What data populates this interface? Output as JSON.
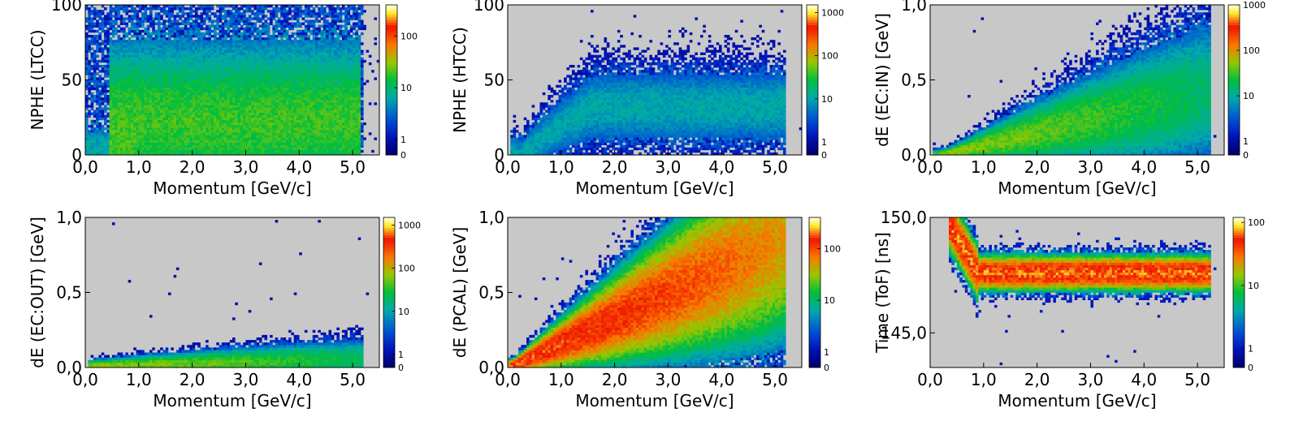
{
  "chart_data": [
    {
      "type": "heatmap",
      "title": "",
      "xlabel": "Momentum [GeV/c]",
      "ylabel": "NPHE (LTCC)",
      "xlim": [
        0,
        5.5
      ],
      "ylim": [
        0,
        100
      ],
      "x_ticks": [
        0,
        1,
        2,
        3,
        4,
        5
      ],
      "x_tick_labels": [
        "0,0",
        "1,0",
        "2,0",
        "3,0",
        "4,0",
        "5,0"
      ],
      "y_ticks": [
        0,
        50,
        100
      ],
      "y_tick_labels": [
        "0",
        "50",
        "100"
      ],
      "colorbar": {
        "scale": "log",
        "ticks": [
          0,
          1,
          10,
          100
        ],
        "tick_labels": [
          "0",
          "1",
          "10",
          "100"
        ],
        "max": 400
      },
      "density_description": "broad band from p=0.2 to 4.9 GeV/c; high density (10-100) for NPHE 0-45 between p 0.7-4.9; sparse counts up to 100",
      "bands": [
        {
          "x_range": [
            0.15,
            4.95
          ],
          "y_center": 45,
          "y_width": 60,
          "peak": 3
        },
        {
          "x_range": [
            0.7,
            4.9
          ],
          "y_center": 22,
          "y_width": 26,
          "peak": 30
        },
        {
          "x_range": [
            0.2,
            0.7
          ],
          "y_center": 5,
          "y_width": 8,
          "peak": 8
        }
      ]
    },
    {
      "type": "heatmap",
      "title": "",
      "xlabel": "Momentum [GeV/c]",
      "ylabel": "NPHE (HTCC)",
      "xlim": [
        0,
        5.5
      ],
      "ylim": [
        0,
        100
      ],
      "x_ticks": [
        0,
        1,
        2,
        3,
        4,
        5
      ],
      "x_tick_labels": [
        "0,0",
        "1,0",
        "2,0",
        "3,0",
        "4,0",
        "5,0"
      ],
      "y_ticks": [
        0,
        50,
        100
      ],
      "y_tick_labels": [
        "0",
        "50",
        "100"
      ],
      "colorbar": {
        "scale": "log",
        "ticks": [
          0,
          1,
          10,
          100,
          1000
        ],
        "tick_labels": [
          "0",
          "1",
          "10",
          "100",
          "1000"
        ],
        "max": 1500
      },
      "density_description": "rising band from near 0 at p=0.3 to ~30 at p=1.5, flat plateau around NPHE 30-35 up to p=4.9",
      "bands": [
        {
          "x_range": [
            0.3,
            4.95
          ],
          "y_center_fn": "plateau",
          "plateau": 32,
          "rise_end": 1.6,
          "y_width": 14,
          "peak": 18
        }
      ]
    },
    {
      "type": "heatmap",
      "title": "",
      "xlabel": "Momentum [GeV/c]",
      "ylabel": "dE (EC:IN) [GeV]",
      "xlim": [
        0,
        5.5
      ],
      "ylim": [
        0,
        1
      ],
      "x_ticks": [
        0,
        1,
        2,
        3,
        4,
        5
      ],
      "x_tick_labels": [
        "0,0",
        "1,0",
        "2,0",
        "3,0",
        "4,0",
        "5,0"
      ],
      "y_ticks": [
        0,
        0.5,
        1
      ],
      "y_tick_labels": [
        "0,0",
        "0,5",
        "1,0"
      ],
      "colorbar": {
        "scale": "log",
        "ticks": [
          0,
          1,
          10,
          100,
          1000
        ],
        "tick_labels": [
          "0",
          "1",
          "10",
          "100",
          "1000"
        ],
        "max": 1000
      },
      "density_description": "linear band rising from ~0 at p=0.5 to ~0.4 GeV at p=5; densest (red) at low momentum near dE 0.05-0.15",
      "bands": [
        {
          "x_range": [
            0.3,
            5.0
          ],
          "slope": 0.085,
          "intercept": -0.02,
          "y_width_frac": 0.55,
          "peak": 60
        }
      ]
    },
    {
      "type": "heatmap",
      "title": "",
      "xlabel": "Momentum [GeV/c]",
      "ylabel": "dE (EC:OUT) [GeV]",
      "xlim": [
        0,
        5.5
      ],
      "ylim": [
        0,
        1
      ],
      "x_ticks": [
        0,
        1,
        2,
        3,
        4,
        5
      ],
      "x_tick_labels": [
        "0,0",
        "1,0",
        "2,0",
        "3,0",
        "4,0",
        "5,0"
      ],
      "y_ticks": [
        0,
        0.5,
        1
      ],
      "y_tick_labels": [
        "0,0",
        "0,5",
        "1,0"
      ],
      "colorbar": {
        "scale": "log",
        "ticks": [
          0,
          1,
          10,
          100,
          1000
        ],
        "tick_labels": [
          "0",
          "1",
          "10",
          "100",
          "1000"
        ],
        "max": 1500
      },
      "density_description": "narrow band near dE 0.0-0.05 growing slightly with momentum up to 5 GeV/c; sparse scatter above",
      "bands": [
        {
          "x_range": [
            0.3,
            4.95
          ],
          "slope": 0.01,
          "intercept": 0.005,
          "y_width_frac": 0.9,
          "peak": 80
        }
      ]
    },
    {
      "type": "heatmap",
      "title": "",
      "xlabel": "Momentum [GeV/c]",
      "ylabel": "dE (PCAL) [GeV]",
      "xlim": [
        0,
        5.5
      ],
      "ylim": [
        0,
        1
      ],
      "x_ticks": [
        0,
        1,
        2,
        3,
        4,
        5
      ],
      "x_tick_labels": [
        "0,0",
        "1,0",
        "2,0",
        "3,0",
        "4,0",
        "5,0"
      ],
      "y_ticks": [
        0,
        0.5,
        1
      ],
      "y_tick_labels": [
        "0,0",
        "0,5",
        "1,0"
      ],
      "colorbar": {
        "scale": "log",
        "ticks": [
          0,
          1,
          10,
          100
        ],
        "tick_labels": [
          "0",
          "1",
          "10",
          "100"
        ],
        "max": 400
      },
      "density_description": "strong linear band from (0.1, 0.02) to (5, 0.8); densest (yellow) at low momentum",
      "bands": [
        {
          "x_range": [
            0.1,
            4.95
          ],
          "slope": 0.165,
          "intercept": -0.005,
          "y_width_frac": 0.35,
          "peak": 200
        }
      ]
    },
    {
      "type": "heatmap",
      "title": "",
      "xlabel": "Momentum [GeV/c]",
      "ylabel": "Time (ToF) [ns]",
      "xlim": [
        0,
        5.5
      ],
      "ylim": [
        143.5,
        150
      ],
      "x_ticks": [
        0,
        1,
        2,
        3,
        4,
        5
      ],
      "x_tick_labels": [
        "0,0",
        "1,0",
        "2,0",
        "3,0",
        "4,0",
        "5,0"
      ],
      "y_ticks": [
        145,
        150
      ],
      "y_tick_labels": [
        "145,0",
        "150,0"
      ],
      "colorbar": {
        "scale": "log",
        "ticks": [
          0,
          1,
          10,
          100
        ],
        "tick_labels": [
          "0",
          "1",
          "10",
          "100"
        ],
        "max": 120
      },
      "density_description": "horizontal band at Time ~147.5 ns from p=0.6 to 5.0; bright yellow core; rising tail near p=0.6 up to ~149",
      "bands": [
        {
          "x_range": [
            0.6,
            5.0
          ],
          "y_center": 147.6,
          "y_width": 0.35,
          "peak": 110,
          "low_p_rise": true
        }
      ]
    }
  ]
}
